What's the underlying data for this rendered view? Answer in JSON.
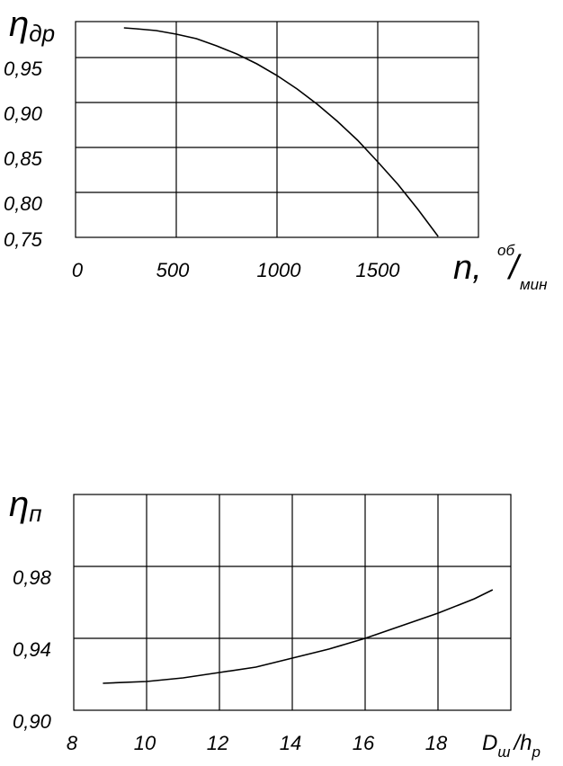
{
  "chart_data": [
    {
      "type": "line",
      "ylabel": {
        "sym": "η",
        "sub": "др"
      },
      "xlabel": {
        "sym": "n,",
        "unit_num": "об",
        "unit_slash": "/",
        "unit_den": "мин"
      },
      "x_tick_labels": [
        "0",
        "500",
        "1000",
        "1500"
      ],
      "y_tick_labels": [
        "0,75",
        "0,80",
        "0,85",
        "0,90",
        "0,95"
      ],
      "xlim": [
        0,
        2000
      ],
      "ylim": [
        0.75,
        0.99
      ],
      "grid": true,
      "series": [
        {
          "x": [
            240,
            300,
            400,
            500,
            600,
            700,
            800,
            900,
            1000,
            1100,
            1200,
            1300,
            1400,
            1500,
            1600,
            1700,
            1800
          ],
          "y": [
            0.983,
            0.982,
            0.98,
            0.976,
            0.971,
            0.963,
            0.954,
            0.943,
            0.93,
            0.915,
            0.898,
            0.879,
            0.858,
            0.834,
            0.809,
            0.781,
            0.751
          ]
        }
      ]
    },
    {
      "type": "line",
      "ylabel": {
        "sym": "η",
        "sub": "п"
      },
      "xlabel": {
        "sym": "D",
        "sub1": "ш",
        "slash": "/h",
        "sub2": "р"
      },
      "x_tick_labels": [
        "8",
        "10",
        "12",
        "14",
        "16",
        "18"
      ],
      "y_tick_labels": [
        "0,90",
        "0,94",
        "0,98"
      ],
      "xlim": [
        8,
        20
      ],
      "ylim": [
        0.9,
        1.02
      ],
      "grid": true,
      "series": [
        {
          "x": [
            8.8,
            10,
            11,
            12,
            13,
            14,
            15,
            16,
            17,
            18,
            19,
            19.5
          ],
          "y": [
            0.915,
            0.916,
            0.918,
            0.921,
            0.924,
            0.929,
            0.934,
            0.94,
            0.947,
            0.954,
            0.962,
            0.967
          ]
        }
      ]
    }
  ]
}
